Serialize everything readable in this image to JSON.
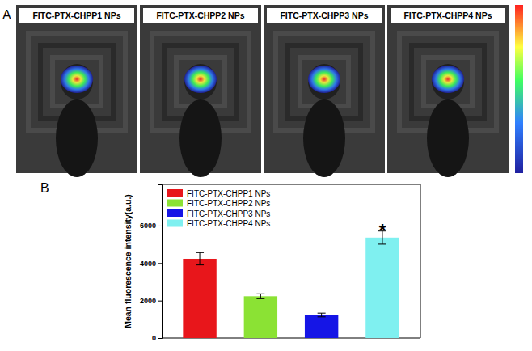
{
  "figure": {
    "panel_letters": [
      "A",
      "B"
    ],
    "images": [
      "FITC-PTX-CHPP1 NPs",
      "FITC-PTX-CHPP2 NPs",
      "FITC-PTX-CHPP3 NPs",
      "FITC-PTX-CHPP4 NPs"
    ]
  },
  "chart_data": {
    "type": "bar",
    "categories": [
      "FITC-PTX-CHPP1 NPs",
      "FITC-PTX-CHPP2 NPs",
      "FITC-PTX-CHPP3 NPs",
      "FITC-PTX-CHPP4 NPs"
    ],
    "values": [
      4230,
      2230,
      1230,
      5360
    ],
    "errors": [
      330,
      130,
      100,
      350
    ],
    "colors": [
      "#e8161b",
      "#8be234",
      "#1515e6",
      "#7ff0f0"
    ],
    "y_label": "Mean fluorescence intensity(a.u.)",
    "ylim": [
      0,
      8200
    ],
    "yticks": [
      0,
      2000,
      4000,
      6000
    ],
    "legend": "upper left",
    "tick_labels": "y",
    "annotations": [
      {
        "text": "*",
        "index": 3
      }
    ]
  }
}
